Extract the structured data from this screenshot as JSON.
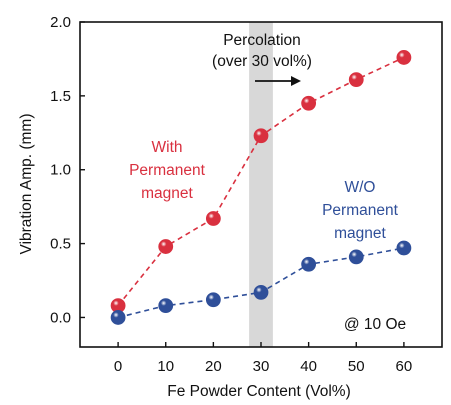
{
  "chart_data": {
    "type": "line",
    "xlabel": "Fe Powder Content (Vol%)",
    "ylabel": "Vibration Amp. (mm)",
    "xlim": [
      -8,
      68
    ],
    "ylim": [
      -0.2,
      2.0
    ],
    "x_ticks": [
      0,
      10,
      20,
      30,
      40,
      50,
      60
    ],
    "y_ticks": [
      0.0,
      0.5,
      1.0,
      1.5,
      2.0
    ],
    "y_tick_labels": [
      "0.0",
      "0.5",
      "1.0",
      "1.5",
      "2.0"
    ],
    "x": [
      0,
      10,
      20,
      30,
      40,
      50,
      60
    ],
    "series": [
      {
        "values": [
          0.08,
          0.48,
          0.67,
          1.23,
          1.45,
          1.61,
          1.76
        ],
        "color": "#d9303f",
        "line_style": "dashed"
      },
      {
        "values": [
          0.0,
          0.08,
          0.12,
          0.17,
          0.36,
          0.41,
          0.47
        ],
        "color": "#2f4f99",
        "line_style": "dashed"
      }
    ],
    "shaded_region": {
      "x_range": [
        27.5,
        32.5
      ],
      "color": "#d8d8d8"
    },
    "annotations": {
      "percolation": [
        "Percolation",
        "(over 30 vol%)"
      ],
      "with_magnet": [
        "With",
        "Permanent",
        "magnet"
      ],
      "without_magnet": [
        "W/O",
        "Permanent",
        "magnet"
      ],
      "condition": "@ 10 Oe"
    },
    "grid": false,
    "legend": "none"
  }
}
